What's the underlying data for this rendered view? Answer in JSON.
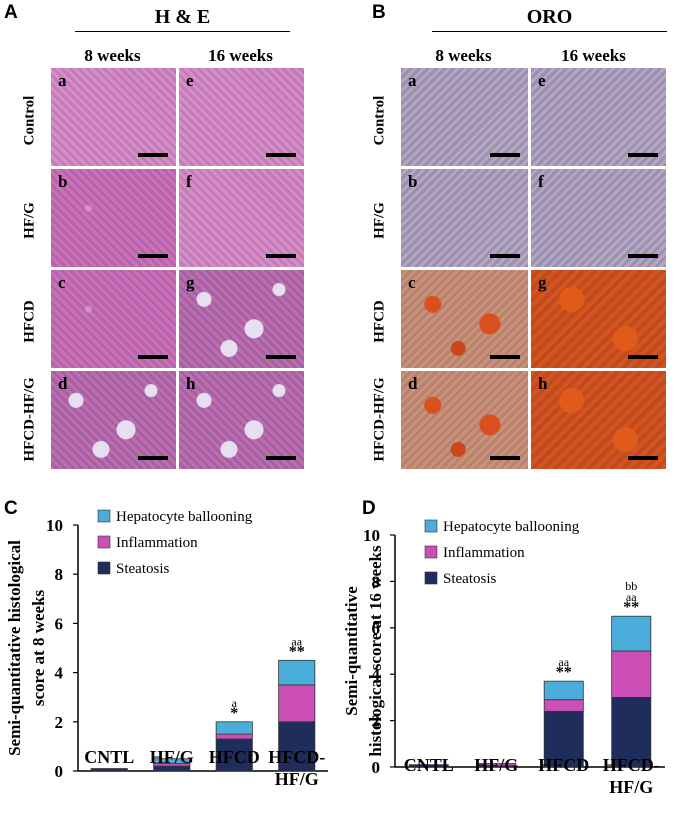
{
  "panelA": {
    "letter": "A",
    "title": "H & E",
    "columns": [
      "8 weeks",
      "16 weeks"
    ],
    "rows": [
      "Control",
      "HF/G",
      "HFCD",
      "HFCD-HF/G"
    ],
    "sublabels": [
      [
        "a",
        "e"
      ],
      [
        "b",
        "f"
      ],
      [
        "c",
        "g"
      ],
      [
        "d",
        "h"
      ]
    ]
  },
  "panelB": {
    "letter": "B",
    "title": "ORO",
    "columns": [
      "8 weeks",
      "16 weeks"
    ],
    "rows": [
      "Control",
      "HF/G",
      "HFCD",
      "HFCD-HF/G"
    ],
    "sublabels": [
      [
        "a",
        "e"
      ],
      [
        "b",
        "f"
      ],
      [
        "c",
        "g"
      ],
      [
        "d",
        "h"
      ]
    ]
  },
  "chart_data": [
    {
      "panel": "C",
      "type": "bar",
      "stacked": true,
      "ylabel": "Semi-quantitative histological score at 8 weeks",
      "ylim": [
        0,
        10
      ],
      "yticks": [
        "0",
        "2",
        "4",
        "6",
        "8",
        "10"
      ],
      "categories": [
        "CNTL",
        "HF/G",
        "HFCD",
        "HFCD-HF/G"
      ],
      "series": [
        {
          "name": "Steatosis",
          "color": "#1f2d5c",
          "values": [
            0.1,
            0.2,
            1.3,
            2.0
          ]
        },
        {
          "name": "Inflammation",
          "color": "#cc4fb8",
          "values": [
            0.0,
            0.1,
            0.2,
            1.5
          ]
        },
        {
          "name": "Hepatocyte ballooning",
          "color": "#4badd9",
          "values": [
            0.0,
            0.2,
            0.5,
            1.0
          ]
        }
      ],
      "annotations": [
        {
          "category": "HFCD",
          "lines": [
            "a",
            "*"
          ]
        },
        {
          "category": "HFCD-HF/G",
          "lines": [
            "aa",
            "**"
          ]
        }
      ]
    },
    {
      "panel": "D",
      "type": "bar",
      "stacked": true,
      "ylabel": "Semi-quantitative histological score at 16 weeks",
      "ylim": [
        0,
        10
      ],
      "yticks": [
        "0",
        "2",
        "4",
        "6",
        "8",
        "10"
      ],
      "categories": [
        "CNTL",
        "HF/G",
        "HFCD",
        "HFCD-HF/G"
      ],
      "series": [
        {
          "name": "Steatosis",
          "color": "#1f2d5c",
          "values": [
            0.1,
            0.05,
            2.4,
            3.0
          ]
        },
        {
          "name": "Inflammation",
          "color": "#cc4fb8",
          "values": [
            0.0,
            0.1,
            0.5,
            2.0
          ]
        },
        {
          "name": "Hepatocyte ballooning",
          "color": "#4badd9",
          "values": [
            0.0,
            0.0,
            0.8,
            1.5
          ]
        }
      ],
      "annotations": [
        {
          "category": "HFCD",
          "lines": [
            "aa",
            "**"
          ]
        },
        {
          "category": "HFCD-HF/G",
          "lines": [
            "bb",
            "aa",
            "**"
          ]
        }
      ]
    }
  ]
}
